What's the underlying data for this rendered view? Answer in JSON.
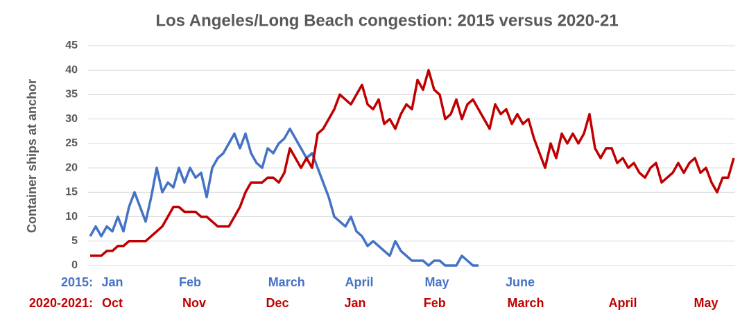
{
  "chart_data": {
    "type": "line",
    "title": "Los Angeles/Long Beach congestion: 2015 versus 2020-21",
    "y_label": "Container ships at anchor",
    "x": [
      0,
      1,
      2,
      3,
      4,
      5,
      6,
      7,
      8,
      9,
      10,
      11,
      12,
      13,
      14,
      15,
      16,
      17,
      18,
      19,
      20,
      21,
      22,
      23,
      24,
      25,
      26,
      27,
      28,
      29,
      30,
      31,
      32,
      33,
      34,
      35,
      36,
      37,
      38,
      39,
      40,
      41,
      42,
      43,
      44,
      45,
      46,
      47,
      48,
      49,
      50,
      51,
      52,
      53,
      54,
      55,
      56,
      57,
      58,
      59,
      60,
      61,
      62,
      63,
      64,
      65,
      66,
      67,
      68,
      69,
      70,
      71,
      72,
      73,
      74,
      75,
      76,
      77,
      78,
      79,
      80,
      81,
      82,
      83,
      84,
      85,
      86,
      87,
      88,
      89,
      90,
      91,
      92,
      93,
      94,
      95,
      96,
      97,
      98,
      99,
      100,
      101,
      102,
      103,
      104,
      105,
      106,
      107,
      108,
      109,
      110,
      111,
      112,
      113,
      114,
      115,
      116
    ],
    "xlim": [
      0,
      116
    ],
    "ylim": [
      0,
      45
    ],
    "yticks": [
      0,
      5,
      10,
      15,
      20,
      25,
      30,
      35,
      40,
      45
    ],
    "grid": true,
    "series": [
      {
        "name": "2015:",
        "color": "#4472c4",
        "values": [
          6,
          8,
          6,
          8,
          7,
          10,
          7,
          12,
          15,
          12,
          9,
          14,
          20,
          15,
          17,
          16,
          20,
          17,
          20,
          18,
          19,
          14,
          20,
          22,
          23,
          25,
          27,
          24,
          27,
          23,
          21,
          20,
          24,
          23,
          25,
          26,
          28,
          26,
          24,
          22,
          23,
          20,
          17,
          14,
          10,
          9,
          8,
          10,
          7,
          6,
          4,
          5,
          4,
          3,
          2,
          5,
          3,
          2,
          1,
          1,
          1,
          0,
          1,
          1,
          0,
          0,
          0,
          2,
          1,
          0,
          0,
          null,
          null,
          null,
          null,
          null,
          null,
          null,
          null,
          null,
          null,
          null,
          null,
          null,
          null,
          null,
          null,
          null,
          null,
          null,
          null,
          null,
          null,
          null,
          null,
          null,
          null,
          null,
          null,
          null,
          null,
          null,
          null,
          null,
          null,
          null,
          null,
          null,
          null,
          null,
          null,
          null,
          null,
          null,
          null,
          null,
          null
        ],
        "xticks": [
          {
            "value": 4,
            "label": "Jan"
          },
          {
            "value": 18,
            "label": "Feb"
          },
          {
            "value": 35.4,
            "label": "March"
          },
          {
            "value": 48.5,
            "label": "April"
          },
          {
            "value": 62.5,
            "label": "May"
          },
          {
            "value": 77.5,
            "label": "June"
          }
        ]
      },
      {
        "name": "2020-2021:",
        "color": "#c00000",
        "values": [
          2,
          2,
          2,
          3,
          3,
          4,
          4,
          5,
          5,
          5,
          5,
          6,
          7,
          8,
          10,
          12,
          12,
          11,
          11,
          11,
          10,
          10,
          9,
          8,
          8,
          8,
          10,
          12,
          15,
          17,
          17,
          17,
          18,
          18,
          17,
          19,
          24,
          22,
          20,
          22,
          20,
          27,
          28,
          30,
          32,
          35,
          34,
          33,
          35,
          37,
          33,
          32,
          34,
          29,
          30,
          28,
          31,
          33,
          32,
          38,
          36,
          40,
          36,
          35,
          30,
          31,
          34,
          30,
          33,
          34,
          32,
          30,
          28,
          33,
          31,
          32,
          29,
          31,
          29,
          30,
          26,
          23,
          20,
          25,
          22,
          27,
          25,
          27,
          25,
          27,
          31,
          24,
          22,
          24,
          24,
          21,
          22,
          20,
          21,
          19,
          18,
          20,
          21,
          17,
          18,
          19,
          21,
          19,
          21,
          22,
          19,
          20,
          17,
          15,
          18,
          18,
          22
        ],
        "xticks": [
          {
            "value": 4,
            "label": "Oct"
          },
          {
            "value": 18.75,
            "label": "Nov"
          },
          {
            "value": 33.75,
            "label": "Dec"
          },
          {
            "value": 47.75,
            "label": "Jan"
          },
          {
            "value": 62.1,
            "label": "Feb"
          },
          {
            "value": 78.5,
            "label": "March"
          },
          {
            "value": 96,
            "label": "April"
          },
          {
            "value": 111,
            "label": "May"
          }
        ]
      }
    ]
  }
}
